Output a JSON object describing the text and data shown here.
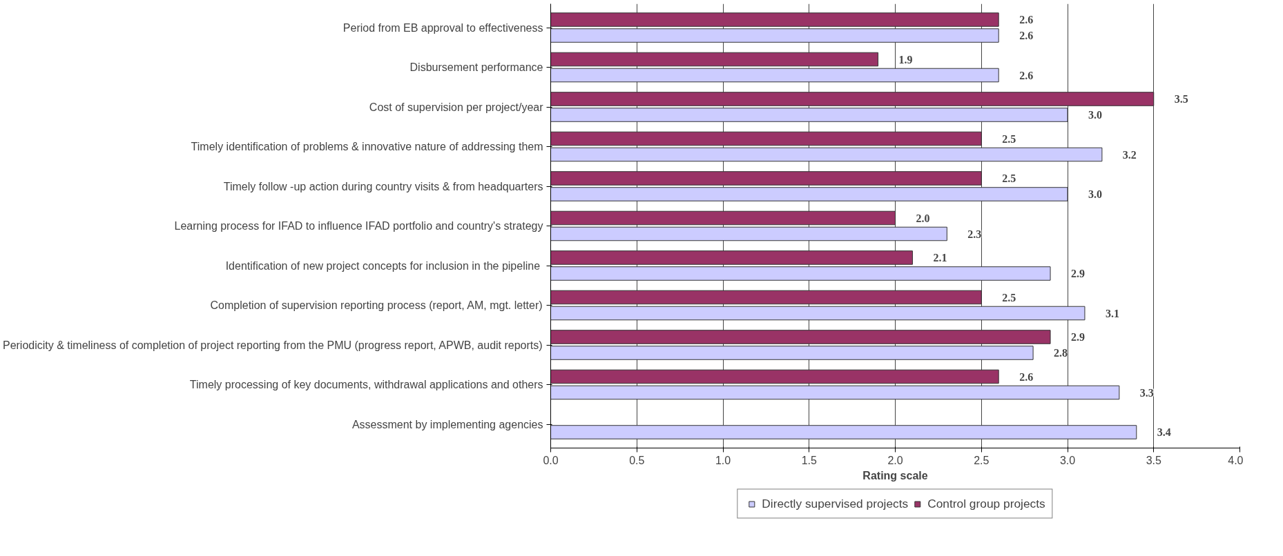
{
  "chart_data": {
    "type": "bar",
    "orientation": "horizontal",
    "xlabel": "Rating scale",
    "categories": [
      "Period from EB approval to effectiveness",
      "Disbursement performance",
      "Cost of supervision per project/year",
      "Timely identification of problems & innovative nature of addressing them",
      "Timely follow -up action during country visits & from headquarters",
      "Learning process for IFAD to influence IFAD portfolio and country's strategy",
      "Identification of new  project concepts for inclusion in the pipeline",
      "Completion of supervision reporting process (report, AM, mgt. letter)",
      "Periodicity & timeliness of completion of project reporting from the PMU (progress report, APWB, audit reports)",
      "Timely processing of key documents, withdrawal applications and others",
      "Assessment by implementing agencies"
    ],
    "series": [
      {
        "name": "Directly supervised projects",
        "color": "#ccccff",
        "values": [
          2.6,
          2.6,
          3.0,
          3.2,
          3.0,
          2.3,
          2.9,
          3.1,
          2.8,
          3.3,
          3.4
        ],
        "value_labels": [
          "2.6",
          "2.6",
          "3.0",
          "3.2",
          "3.0",
          "2.3",
          "2.9",
          "3.1",
          "2.8",
          "3.3",
          "3.4"
        ]
      },
      {
        "name": "Control group projects",
        "color": "#993366",
        "values": [
          2.6,
          1.9,
          3.5,
          2.5,
          2.5,
          2.0,
          2.1,
          2.5,
          2.9,
          2.6,
          null
        ],
        "value_labels": [
          "2.6",
          "1.9",
          "3.5",
          "2.5",
          "2.5",
          "2.0",
          "2.1",
          "2.5",
          "2.9",
          "2.6",
          null
        ]
      }
    ],
    "xlim": [
      0,
      4
    ],
    "xticks": [
      {
        "value": 0,
        "label": "0.0"
      },
      {
        "value": 0.5,
        "label": "0.5"
      },
      {
        "value": 1,
        "label": "1.0"
      },
      {
        "value": 1.5,
        "label": "1.5"
      },
      {
        "value": 2,
        "label": "2.0"
      },
      {
        "value": 2.5,
        "label": "2.5"
      },
      {
        "value": 3,
        "label": "3.0"
      },
      {
        "value": 3.5,
        "label": "3.5"
      },
      {
        "value": 4,
        "label": "4.0"
      }
    ],
    "data_labels": true,
    "grid": "x",
    "legend": "bottom"
  }
}
